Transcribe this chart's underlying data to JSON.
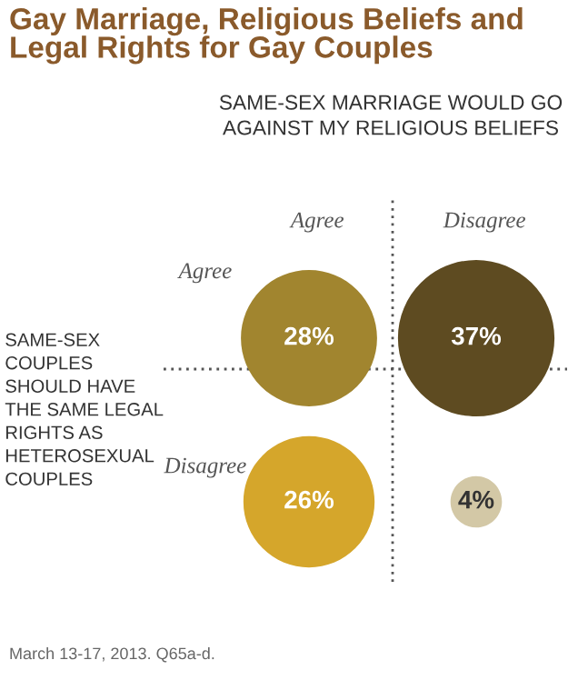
{
  "chart_data": {
    "type": "other",
    "title": "Gay Marriage, Religious Beliefs and Legal Rights for Gay Couples",
    "subtitle": "SAME-SEX MARRIAGE WOULD GO AGAINST MY RELIGIOUS BELIEFS",
    "ylabel": "SAME-SEX COUPLES SHOULD HAVE THE SAME LEGAL RIGHTS AS HETEROSEXUAL COUPLES",
    "categories": [
      "Agree",
      "Disagree"
    ],
    "series": [
      {
        "name": "Agree",
        "values": [
          28,
          37
        ],
        "value_labels": [
          "28%",
          "37%"
        ],
        "colors": [
          "#a1852f",
          "#5e4b21"
        ]
      },
      {
        "name": "Disagree",
        "values": [
          26,
          4
        ],
        "value_labels": [
          "26%",
          "4%"
        ],
        "colors": [
          "#d5a62b",
          "#d3c8a6"
        ]
      }
    ],
    "annotations": [
      "March 13-17, 2013. Q65a-d."
    ]
  }
}
